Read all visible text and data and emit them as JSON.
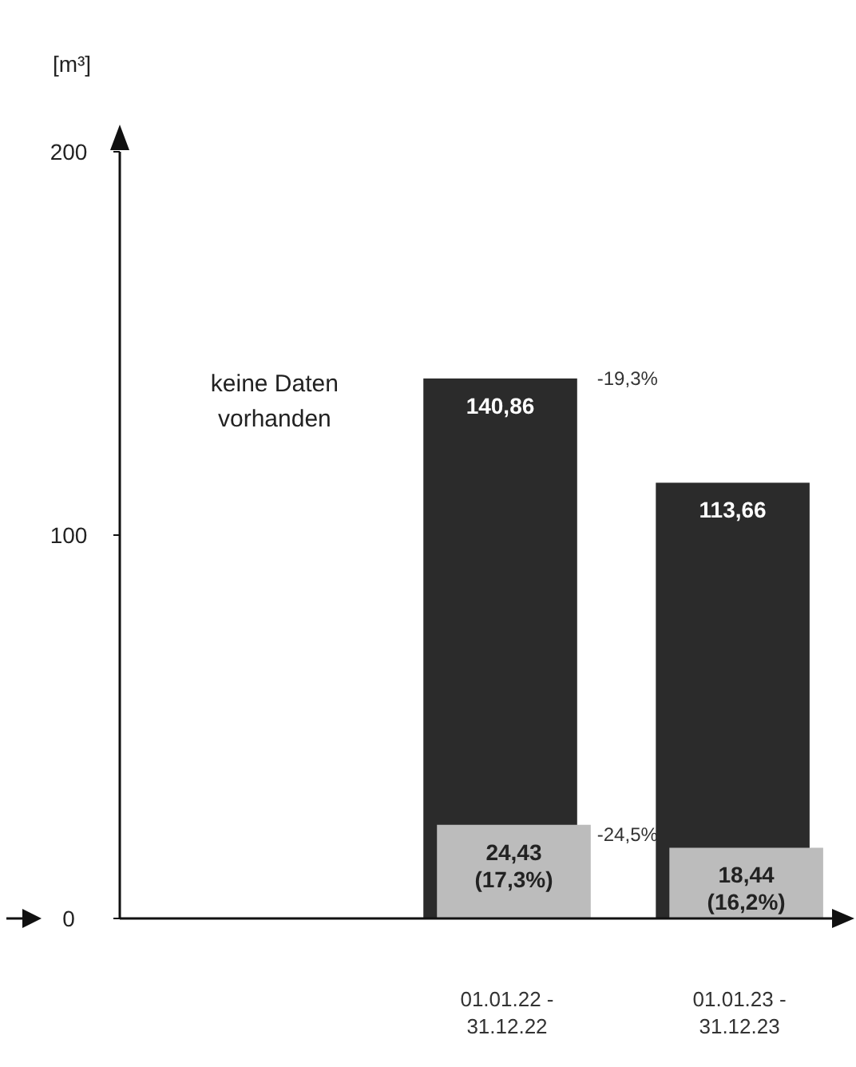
{
  "chart_data": {
    "type": "bar",
    "ylabel": "[m³]",
    "categories": [
      null,
      "01.01.22 - 31.12.22",
      "01.01.23 - 31.12.23"
    ],
    "series": [
      {
        "color": "#2b2b2b",
        "values": [
          null,
          140.86,
          113.66
        ],
        "value_labels": [
          null,
          "140,86",
          "113,66"
        ]
      },
      {
        "color": "#bcbcbc",
        "values": [
          null,
          24.43,
          18.44
        ],
        "value_labels": [
          null,
          "24,43 (17,3%)",
          "18,44 (16,2%)"
        ]
      }
    ],
    "ylim": [
      0,
      200
    ],
    "yticks": [
      0,
      100,
      200
    ],
    "grid": false,
    "annotations": [
      "keine Daten vorhanden",
      "-19,3%",
      "-24,5%"
    ]
  }
}
